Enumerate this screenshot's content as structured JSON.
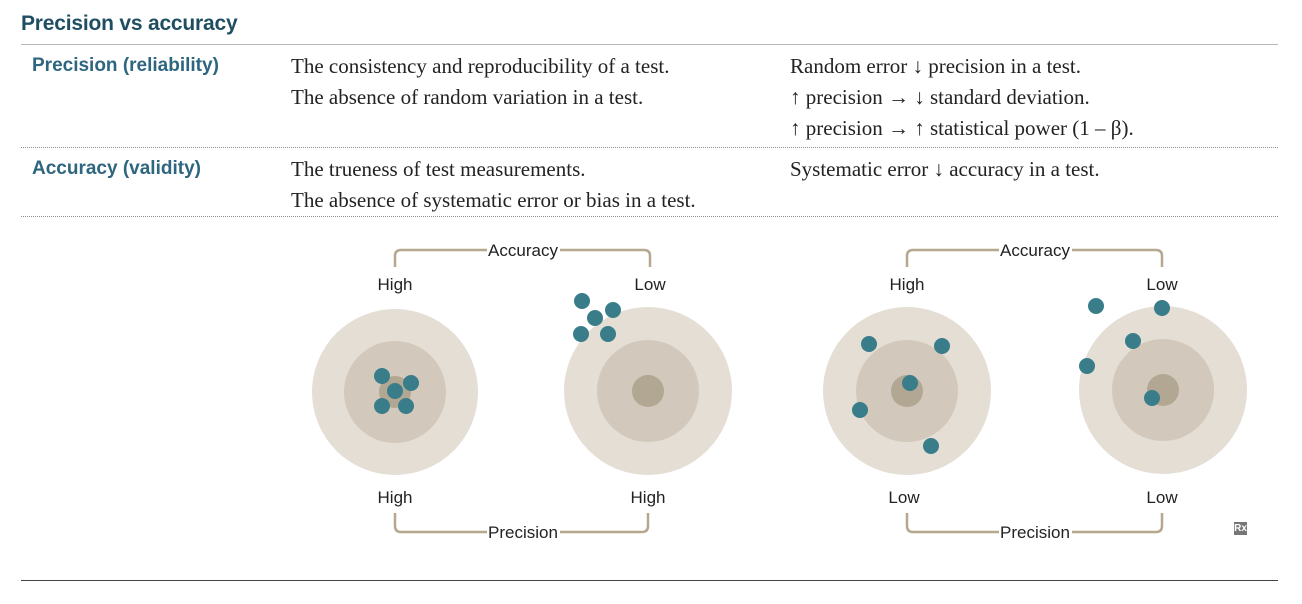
{
  "title": "Precision vs accuracy",
  "rows": [
    {
      "heading": "Precision (reliability)",
      "definition": [
        "The consistency and reproducibility of a test.",
        "The absence of random variation in a test."
      ],
      "effects": [
        "Random error ↓ precision in a test.",
        "↑ precision → ↓ standard deviation.",
        "↑ precision → ↑ statistical power (1 – β)."
      ]
    },
    {
      "heading": "Accuracy (validity)",
      "definition": [
        "The trueness of test measurements.",
        "The absence of systematic error or bias in a test."
      ],
      "effects": [
        "Systematic error ↓ accuracy in a test."
      ]
    }
  ],
  "diagrams": [
    {
      "accuracy_label": "Accuracy",
      "precision_label": "Precision",
      "left_accuracy": "High",
      "right_accuracy": "Low",
      "left_precision": "High",
      "right_precision": "High"
    },
    {
      "accuracy_label": "Accuracy",
      "precision_label": "Precision",
      "left_accuracy": "High",
      "right_accuracy": "Low",
      "left_precision": "Low",
      "right_precision": "Low"
    }
  ],
  "badge": "Rx",
  "colors": {
    "title": "#1f4e63",
    "heading": "#2e6680",
    "target_outer": "#e4ded4",
    "target_middle": "#d2c9bc",
    "target_center": "#b1a792",
    "shot": "#3a7d8a",
    "bracket": "#b5a88f"
  }
}
